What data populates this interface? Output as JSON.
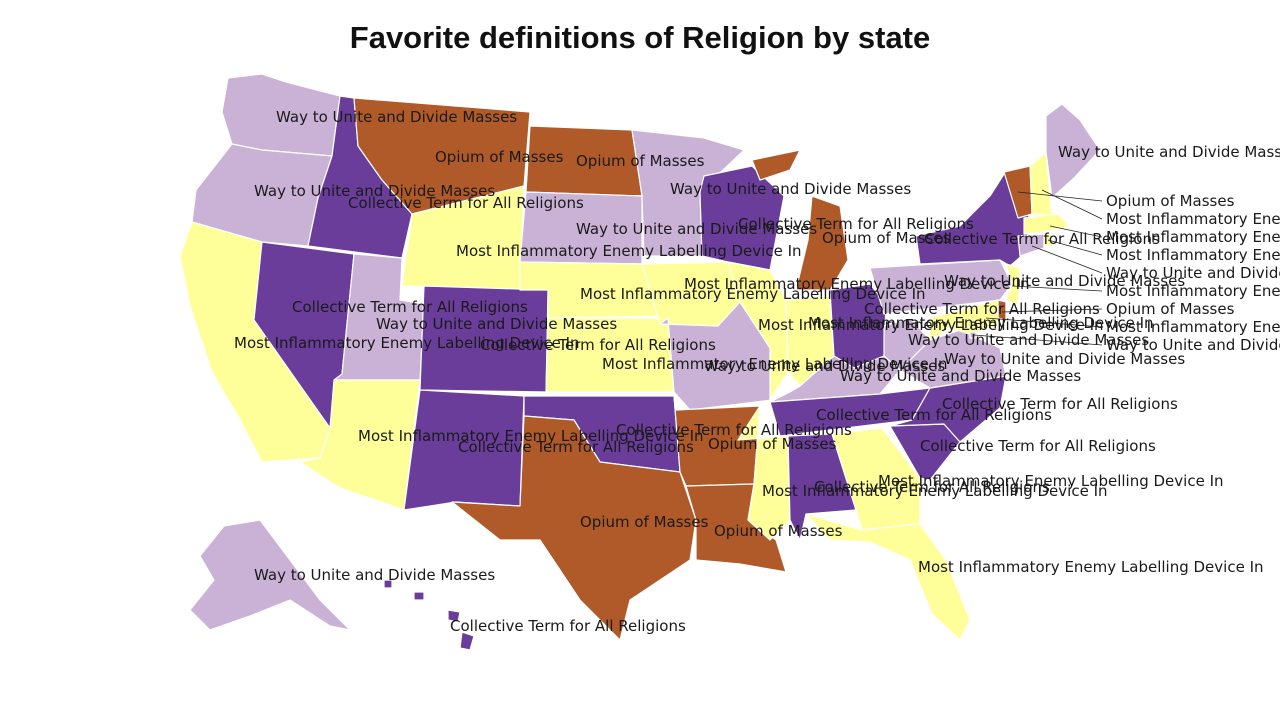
{
  "title": "Favorite definitions of Religion by state",
  "categories": {
    "opium": {
      "label": "Opium of Masses",
      "color": "#b05a29"
    },
    "inflammatory": {
      "label": "Most Inflammatory Enemy Labelling Device In",
      "color": "#ffff99"
    },
    "collective": {
      "label": "Collective Term for All Religions",
      "color": "#6a3d9a"
    },
    "unite": {
      "label": "Way to Unite and Divide Masses",
      "color": "#cab2d6"
    }
  },
  "states": [
    {
      "name": "Washington",
      "category": "unite"
    },
    {
      "name": "Oregon",
      "category": "unite"
    },
    {
      "name": "California",
      "category": "inflammatory"
    },
    {
      "name": "Idaho",
      "category": "collective"
    },
    {
      "name": "Nevada",
      "category": "collective"
    },
    {
      "name": "Utah",
      "category": "unite"
    },
    {
      "name": "Arizona",
      "category": "inflammatory"
    },
    {
      "name": "Montana",
      "category": "opium"
    },
    {
      "name": "Wyoming",
      "category": "inflammatory"
    },
    {
      "name": "Colorado",
      "category": "collective"
    },
    {
      "name": "New Mexico",
      "category": "collective"
    },
    {
      "name": "North Dakota",
      "category": "opium"
    },
    {
      "name": "South Dakota",
      "category": "unite"
    },
    {
      "name": "Nebraska",
      "category": "inflammatory"
    },
    {
      "name": "Kansas",
      "category": "inflammatory"
    },
    {
      "name": "Oklahoma",
      "category": "collective"
    },
    {
      "name": "Texas",
      "category": "opium"
    },
    {
      "name": "Minnesota",
      "category": "unite"
    },
    {
      "name": "Iowa",
      "category": "inflammatory"
    },
    {
      "name": "Missouri",
      "category": "unite"
    },
    {
      "name": "Arkansas",
      "category": "opium"
    },
    {
      "name": "Louisiana",
      "category": "opium"
    },
    {
      "name": "Wisconsin",
      "category": "collective"
    },
    {
      "name": "Illinois",
      "category": "inflammatory"
    },
    {
      "name": "Michigan",
      "category": "opium"
    },
    {
      "name": "Indiana",
      "category": "inflammatory"
    },
    {
      "name": "Ohio",
      "category": "collective"
    },
    {
      "name": "Kentucky",
      "category": "unite"
    },
    {
      "name": "Tennessee",
      "category": "collective"
    },
    {
      "name": "Mississippi",
      "category": "inflammatory"
    },
    {
      "name": "Alabama",
      "category": "collective"
    },
    {
      "name": "Georgia",
      "category": "inflammatory"
    },
    {
      "name": "Florida",
      "category": "inflammatory"
    },
    {
      "name": "South Carolina",
      "category": "collective"
    },
    {
      "name": "North Carolina",
      "category": "collective"
    },
    {
      "name": "Virginia",
      "category": "unite"
    },
    {
      "name": "West Virginia",
      "category": "unite"
    },
    {
      "name": "Pennsylvania",
      "category": "unite"
    },
    {
      "name": "New York",
      "category": "collective"
    },
    {
      "name": "Vermont",
      "category": "opium"
    },
    {
      "name": "New Hampshire",
      "category": "inflammatory"
    },
    {
      "name": "Maine",
      "category": "unite"
    },
    {
      "name": "Massachusetts",
      "category": "inflammatory"
    },
    {
      "name": "Rhode Island",
      "category": "inflammatory"
    },
    {
      "name": "Connecticut",
      "category": "unite"
    },
    {
      "name": "New Jersey",
      "category": "inflammatory"
    },
    {
      "name": "Delaware",
      "category": "opium"
    },
    {
      "name": "Maryland",
      "category": "inflammatory"
    },
    {
      "name": "District of Columbia",
      "category": "unite"
    },
    {
      "name": "Alaska",
      "category": "unite"
    },
    {
      "name": "Hawaii",
      "category": "collective"
    }
  ]
}
